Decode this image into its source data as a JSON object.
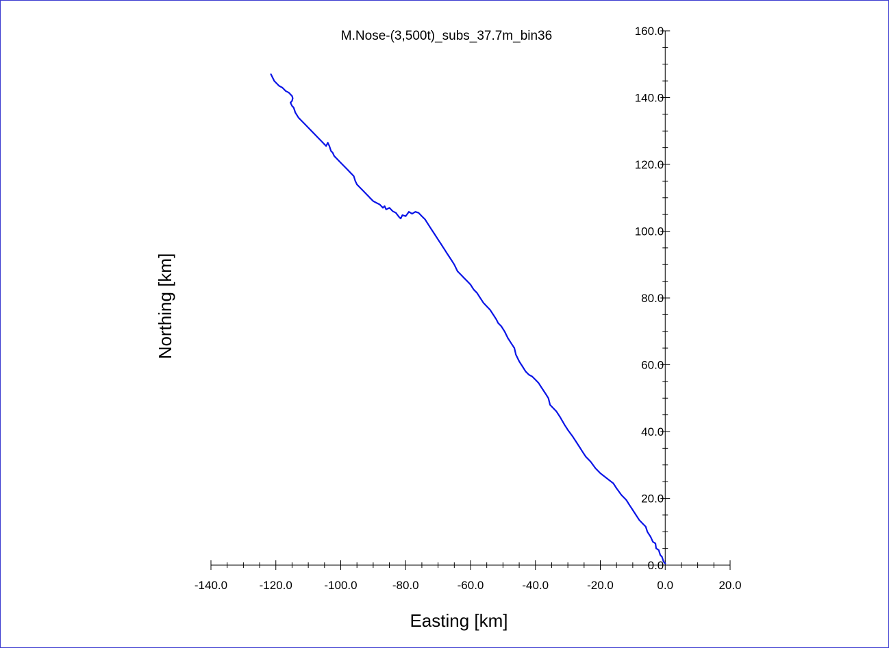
{
  "chart_data": {
    "type": "line",
    "title": "M.Nose-(3,500t)_subs_37.7m_bin36",
    "xlabel": "Easting [km]",
    "ylabel": "Northing [km]",
    "xlim": [
      -140,
      20
    ],
    "ylim": [
      0,
      160
    ],
    "x_ticks": [
      "-140.0",
      "-120.0",
      "-100.0",
      "-80.0",
      "-60.0",
      "-40.0",
      "-20.0",
      "0.0",
      "20.0"
    ],
    "y_ticks": [
      "0.0",
      "20.0",
      "40.0",
      "60.0",
      "80.0",
      "100.0",
      "120.0",
      "140.0",
      "160.0"
    ],
    "grid": false,
    "colors": {
      "line": "#0a14e6",
      "axis": "#000000",
      "frame": "#3a3ad0"
    },
    "series": [
      {
        "x": [
          0.0,
          -0.5,
          -1.0,
          -1.5,
          -2.0,
          -2.8,
          -3.0,
          -3.8,
          -4.5,
          -5.5,
          -6.0,
          -7.0,
          -8.0,
          -9.0,
          -10.0,
          -11.0,
          -12.0,
          -13.5,
          -15.0,
          -16.0,
          -18.0,
          -20.0,
          -21.5,
          -23.0,
          -24.5,
          -25.5,
          -26.5,
          -27.5,
          -28.5,
          -30.0,
          -31.0,
          -32.5,
          -33.5,
          -34.5,
          -35.5,
          -36.0,
          -37.0,
          -38.0,
          -39.0,
          -40.0,
          -41.0,
          -42.0,
          -43.0,
          -44.0,
          -45.0,
          -46.0,
          -46.5,
          -47.5,
          -48.5,
          -49.5,
          -50.5,
          -51.5,
          -52.0,
          -53.0,
          -54.0,
          -55.0,
          -56.0,
          -57.0,
          -58.0,
          -59.0,
          -60.0,
          -61.0,
          -62.0,
          -63.0,
          -64.0,
          -65.0,
          -66.0,
          -67.0,
          -68.0,
          -69.0,
          -70.0,
          -71.0,
          -72.0,
          -73.0,
          -74.0,
          -75.0,
          -76.0,
          -77.0,
          -78.0,
          -79.0,
          -80.0,
          -81.0,
          -81.5,
          -82.0,
          -83.0,
          -84.0,
          -85.0,
          -86.0,
          -86.5,
          -87.0,
          -88.0,
          -89.0,
          -90.0,
          -90.5,
          -91.0,
          -91.5,
          -92.0,
          -93.0,
          -94.0,
          -95.0,
          -95.5,
          -96.0,
          -97.0,
          -98.0,
          -99.0,
          -100.0,
          -101.0,
          -102.0,
          -102.5,
          -103.0,
          -103.5,
          -104.0,
          -104.5,
          -105.0,
          -106.0,
          -107.0,
          -108.0,
          -109.0,
          -110.0,
          -111.0,
          -112.0,
          -113.0,
          -114.0,
          -114.5,
          -115.0,
          -115.5,
          -115.0,
          -114.8,
          -115.0,
          -116.0,
          -117.0,
          -117.5,
          -118.0,
          -119.0,
          -120.0,
          -120.5,
          -121.0,
          -121.5
        ],
        "y": [
          0.5,
          1.0,
          2.5,
          3.0,
          4.5,
          5.0,
          6.5,
          7.0,
          8.5,
          10.0,
          11.5,
          12.5,
          13.5,
          15.0,
          16.5,
          18.0,
          19.5,
          21.0,
          23.0,
          24.5,
          26.0,
          27.5,
          29.0,
          31.0,
          32.5,
          34.0,
          35.5,
          37.0,
          38.5,
          40.5,
          42.0,
          44.5,
          46.0,
          47.0,
          48.0,
          50.0,
          51.5,
          53.0,
          54.5,
          55.5,
          56.5,
          57.0,
          58.0,
          59.5,
          61.0,
          63.0,
          65.0,
          66.5,
          68.0,
          70.0,
          71.5,
          72.5,
          73.5,
          75.0,
          76.5,
          77.5,
          78.5,
          80.0,
          81.5,
          82.5,
          84.0,
          85.0,
          86.0,
          87.0,
          88.0,
          90.0,
          91.5,
          93.0,
          94.5,
          96.0,
          97.5,
          99.0,
          100.5,
          102.0,
          103.5,
          104.5,
          105.5,
          105.8,
          105.2,
          105.8,
          104.5,
          104.8,
          103.8,
          104.2,
          105.5,
          106.0,
          107.0,
          106.5,
          107.5,
          107.0,
          108.0,
          108.5,
          109.0,
          109.5,
          110.0,
          110.5,
          111.0,
          112.0,
          113.0,
          114.0,
          115.0,
          116.5,
          117.5,
          118.5,
          119.5,
          120.5,
          121.5,
          122.5,
          123.5,
          124.0,
          125.5,
          126.5,
          125.5,
          126.0,
          127.0,
          128.0,
          129.0,
          130.0,
          131.0,
          132.0,
          133.0,
          134.0,
          135.5,
          137.0,
          137.5,
          138.5,
          139.0,
          139.8,
          140.5,
          141.5,
          142.0,
          142.5,
          143.0,
          143.5,
          144.5,
          145.0,
          146.0,
          147.0
        ]
      }
    ]
  }
}
